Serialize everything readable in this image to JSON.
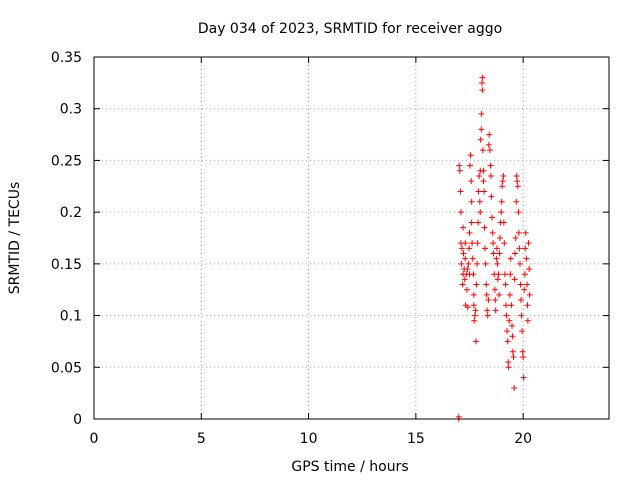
{
  "chart_data": {
    "type": "scatter",
    "title": "Day 034 of 2023, SRMTID for receiver aggo",
    "xlabel": "GPS time / hours",
    "ylabel": "SRMTID / TECUs",
    "xlim": [
      0,
      24
    ],
    "ylim": [
      0,
      0.35
    ],
    "x_ticks": [
      0,
      5,
      10,
      15,
      20
    ],
    "x_tick_labels": [
      "0",
      "5",
      "10",
      "15",
      "20"
    ],
    "y_ticks": [
      0,
      0.05,
      0.1,
      0.15,
      0.2,
      0.25,
      0.3,
      0.35
    ],
    "y_tick_labels": [
      "0",
      "0.05",
      "0.1",
      "0.15",
      "0.2",
      "0.25",
      "0.3",
      "0.35"
    ],
    "grid": true,
    "marker": "+",
    "colors": {
      "series": "#ff0000",
      "grid": "#a0a0a0",
      "axis": "#000000"
    },
    "series": [
      {
        "name": "SRMTID",
        "points": [
          [
            17.0,
            0.0
          ],
          [
            17.0,
            0.002
          ],
          [
            17.02,
            0.245
          ],
          [
            17.05,
            0.24
          ],
          [
            17.08,
            0.22
          ],
          [
            17.1,
            0.2
          ],
          [
            17.1,
            0.17
          ],
          [
            17.12,
            0.15
          ],
          [
            17.15,
            0.165
          ],
          [
            17.18,
            0.13
          ],
          [
            17.2,
            0.14
          ],
          [
            17.2,
            0.185
          ],
          [
            17.22,
            0.16
          ],
          [
            17.25,
            0.145
          ],
          [
            17.28,
            0.135
          ],
          [
            17.3,
            0.155
          ],
          [
            17.3,
            0.17
          ],
          [
            17.32,
            0.11
          ],
          [
            17.35,
            0.14
          ],
          [
            17.38,
            0.125
          ],
          [
            17.4,
            0.145
          ],
          [
            17.42,
            0.108
          ],
          [
            17.45,
            0.15
          ],
          [
            17.48,
            0.165
          ],
          [
            17.5,
            0.18
          ],
          [
            17.5,
            0.14
          ],
          [
            17.52,
            0.245
          ],
          [
            17.55,
            0.255
          ],
          [
            17.58,
            0.23
          ],
          [
            17.6,
            0.21
          ],
          [
            17.6,
            0.19
          ],
          [
            17.62,
            0.17
          ],
          [
            17.65,
            0.155
          ],
          [
            17.68,
            0.14
          ],
          [
            17.7,
            0.12
          ],
          [
            17.7,
            0.11
          ],
          [
            17.72,
            0.095
          ],
          [
            17.75,
            0.1
          ],
          [
            17.78,
            0.105
          ],
          [
            17.8,
            0.075
          ],
          [
            17.82,
            0.13
          ],
          [
            17.85,
            0.15
          ],
          [
            17.88,
            0.17
          ],
          [
            17.9,
            0.19
          ],
          [
            17.92,
            0.22
          ],
          [
            17.95,
            0.235
          ],
          [
            17.98,
            0.21
          ],
          [
            18.0,
            0.2
          ],
          [
            18.0,
            0.24
          ],
          [
            18.02,
            0.27
          ],
          [
            18.05,
            0.28
          ],
          [
            18.05,
            0.295
          ],
          [
            18.08,
            0.325
          ],
          [
            18.1,
            0.33
          ],
          [
            18.1,
            0.318
          ],
          [
            18.12,
            0.26
          ],
          [
            18.15,
            0.23
          ],
          [
            18.15,
            0.24
          ],
          [
            18.18,
            0.22
          ],
          [
            18.2,
            0.185
          ],
          [
            18.22,
            0.165
          ],
          [
            18.25,
            0.15
          ],
          [
            18.28,
            0.13
          ],
          [
            18.3,
            0.12
          ],
          [
            18.32,
            0.105
          ],
          [
            18.35,
            0.1
          ],
          [
            18.38,
            0.115
          ],
          [
            18.4,
            0.265
          ],
          [
            18.42,
            0.275
          ],
          [
            18.45,
            0.26
          ],
          [
            18.48,
            0.245
          ],
          [
            18.5,
            0.235
          ],
          [
            18.52,
            0.215
          ],
          [
            18.55,
            0.195
          ],
          [
            18.58,
            0.18
          ],
          [
            18.6,
            0.17
          ],
          [
            18.62,
            0.16
          ],
          [
            18.65,
            0.14
          ],
          [
            18.68,
            0.125
          ],
          [
            18.7,
            0.115
          ],
          [
            18.72,
            0.105
          ],
          [
            18.75,
            0.155
          ],
          [
            18.78,
            0.165
          ],
          [
            18.8,
            0.15
          ],
          [
            18.82,
            0.135
          ],
          [
            18.85,
            0.14
          ],
          [
            18.88,
            0.12
          ],
          [
            18.9,
            0.16
          ],
          [
            18.92,
            0.175
          ],
          [
            18.95,
            0.19
          ],
          [
            18.98,
            0.2
          ],
          [
            19.0,
            0.21
          ],
          [
            19.02,
            0.225
          ],
          [
            19.05,
            0.23
          ],
          [
            19.08,
            0.235
          ],
          [
            19.1,
            0.19
          ],
          [
            19.12,
            0.17
          ],
          [
            19.15,
            0.14
          ],
          [
            19.18,
            0.13
          ],
          [
            19.2,
            0.11
          ],
          [
            19.22,
            0.1
          ],
          [
            19.25,
            0.085
          ],
          [
            19.28,
            0.075
          ],
          [
            19.3,
            0.055
          ],
          [
            19.32,
            0.05
          ],
          [
            19.35,
            0.095
          ],
          [
            19.38,
            0.12
          ],
          [
            19.4,
            0.14
          ],
          [
            19.42,
            0.155
          ],
          [
            19.45,
            0.11
          ],
          [
            19.48,
            0.09
          ],
          [
            19.5,
            0.08
          ],
          [
            19.52,
            0.065
          ],
          [
            19.55,
            0.06
          ],
          [
            19.58,
            0.03
          ],
          [
            19.6,
            0.135
          ],
          [
            19.62,
            0.16
          ],
          [
            19.65,
            0.175
          ],
          [
            19.68,
            0.21
          ],
          [
            19.7,
            0.235
          ],
          [
            19.72,
            0.23
          ],
          [
            19.75,
            0.225
          ],
          [
            19.78,
            0.2
          ],
          [
            19.8,
            0.18
          ],
          [
            19.82,
            0.165
          ],
          [
            19.85,
            0.15
          ],
          [
            19.88,
            0.13
          ],
          [
            19.9,
            0.115
          ],
          [
            19.92,
            0.1
          ],
          [
            19.95,
            0.085
          ],
          [
            19.98,
            0.065
          ],
          [
            20.0,
            0.06
          ],
          [
            20.02,
            0.04
          ],
          [
            20.05,
            0.125
          ],
          [
            20.08,
            0.14
          ],
          [
            20.1,
            0.165
          ],
          [
            20.12,
            0.18
          ],
          [
            20.15,
            0.155
          ],
          [
            20.18,
            0.13
          ],
          [
            20.2,
            0.11
          ],
          [
            20.22,
            0.095
          ],
          [
            20.25,
            0.17
          ],
          [
            20.28,
            0.145
          ],
          [
            20.3,
            0.12
          ]
        ]
      }
    ]
  }
}
